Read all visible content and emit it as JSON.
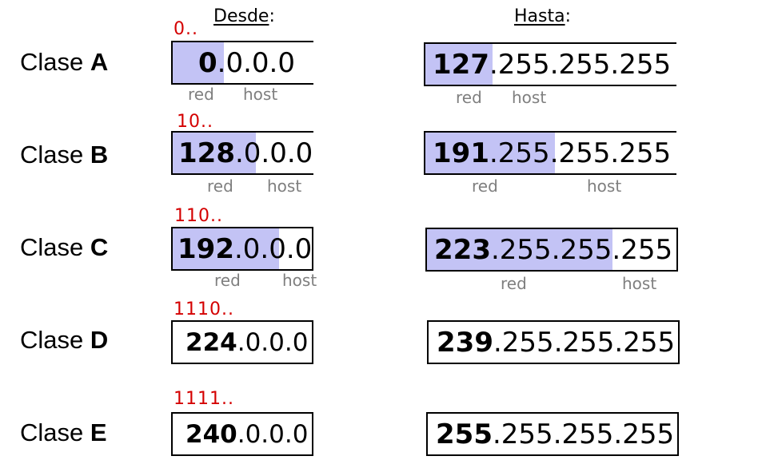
{
  "headers": {
    "desde": "Desde",
    "desde_colon": ":",
    "hasta": "Hasta",
    "hasta_colon": ":"
  },
  "labels": {
    "red": "red",
    "host": "host"
  },
  "rows": [
    {
      "class_prefix": "Clase ",
      "class_letter": "A",
      "bit_prefix": "0..",
      "from": {
        "net": "0",
        "rest": ".0.0.0"
      },
      "to": {
        "net": "127",
        "rest": ".255.255.255"
      },
      "from_network_octets": 1,
      "to_network_octets": 1
    },
    {
      "class_prefix": "Clase ",
      "class_letter": "B",
      "bit_prefix": "10..",
      "from": {
        "net": "128",
        "rest": ".0.0.0"
      },
      "to": {
        "net": "191",
        "rest": ".255.255.255"
      },
      "from_network_octets": 2,
      "to_network_octets": 2
    },
    {
      "class_prefix": "Clase ",
      "class_letter": "C",
      "bit_prefix": "110..",
      "from": {
        "net": "192",
        "rest": ".0.0.0"
      },
      "to": {
        "net": "223",
        "rest": ".255.255.255"
      },
      "from_network_octets": 3,
      "to_network_octets": 3
    },
    {
      "class_prefix": "Clase ",
      "class_letter": "D",
      "bit_prefix": "1110..",
      "from": {
        "net": "224",
        "rest": ".0.0.0"
      },
      "to": {
        "net": "239",
        "rest": ".255.255.255"
      }
    },
    {
      "class_prefix": "Clase ",
      "class_letter": "E",
      "bit_prefix": "1111..",
      "from": {
        "net": "240",
        "rest": ".0.0.0"
      },
      "to": {
        "net": "255",
        "rest": ".255.255.255"
      }
    }
  ],
  "colors": {
    "network_highlight": "#c3c3f5",
    "bit_prefix": "#d40000",
    "label_gray": "#7f7f7f"
  }
}
